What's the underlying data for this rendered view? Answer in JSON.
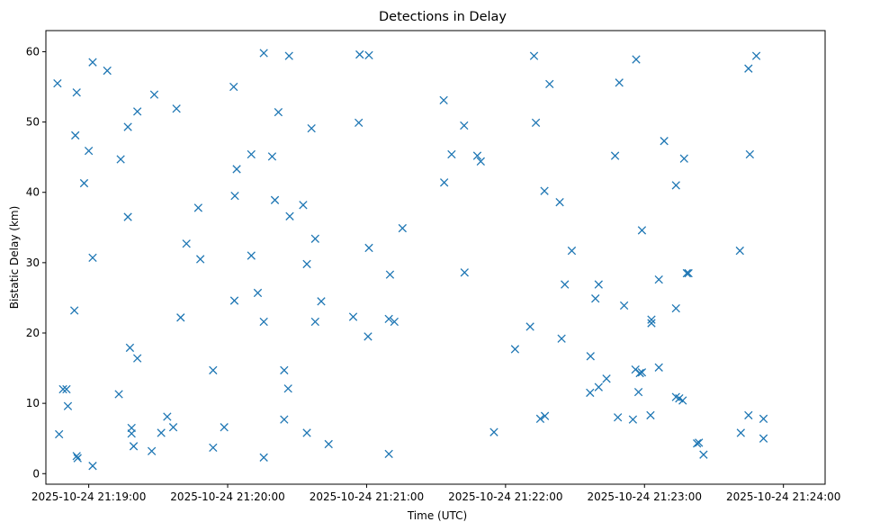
{
  "chart_data": {
    "type": "scatter",
    "title": "Detections in Delay",
    "xlabel": "Time (UTC)",
    "ylabel": "Bistatic Delay (km)",
    "marker": "x",
    "color": "#1f77b4",
    "x_unit": "seconds after 2025-10-24 21:19:00",
    "xlim": [
      -18.5,
      318
    ],
    "ylim": [
      -1.5,
      63
    ],
    "x_ticks": [
      {
        "value": 0,
        "label": "2025-10-24 21:19:00"
      },
      {
        "value": 60,
        "label": "2025-10-24 21:20:00"
      },
      {
        "value": 120,
        "label": "2025-10-24 21:21:00"
      },
      {
        "value": 180,
        "label": "2025-10-24 21:22:00"
      },
      {
        "value": 240,
        "label": "2025-10-24 21:23:00"
      },
      {
        "value": 300,
        "label": "2025-10-24 21:24:00"
      }
    ],
    "y_ticks": [
      {
        "value": 0,
        "label": "0"
      },
      {
        "value": 10,
        "label": "10"
      },
      {
        "value": 20,
        "label": "20"
      },
      {
        "value": 30,
        "label": "30"
      },
      {
        "value": 40,
        "label": "40"
      },
      {
        "value": 50,
        "label": "50"
      },
      {
        "value": 60,
        "label": "60"
      }
    ],
    "points": [
      {
        "x": -13.5,
        "y": 55.5
      },
      {
        "x": -12.8,
        "y": 5.6
      },
      {
        "x": -11.1,
        "y": 12.0
      },
      {
        "x": -9.6,
        "y": 12.0
      },
      {
        "x": -9.0,
        "y": 9.6
      },
      {
        "x": -6.2,
        "y": 23.2
      },
      {
        "x": -5.8,
        "y": 48.1
      },
      {
        "x": -5.2,
        "y": 54.2
      },
      {
        "x": -5.2,
        "y": 2.5
      },
      {
        "x": -4.8,
        "y": 2.2
      },
      {
        "x": -2.0,
        "y": 41.3
      },
      {
        "x": 0.0,
        "y": 45.9
      },
      {
        "x": 1.7,
        "y": 58.5
      },
      {
        "x": 1.7,
        "y": 30.7
      },
      {
        "x": 1.7,
        "y": 1.1
      },
      {
        "x": 8.0,
        "y": 57.3
      },
      {
        "x": 13.0,
        "y": 11.3
      },
      {
        "x": 13.8,
        "y": 44.7
      },
      {
        "x": 16.9,
        "y": 49.3
      },
      {
        "x": 16.9,
        "y": 36.5
      },
      {
        "x": 17.8,
        "y": 17.9
      },
      {
        "x": 18.5,
        "y": 6.5
      },
      {
        "x": 18.5,
        "y": 5.7
      },
      {
        "x": 19.4,
        "y": 3.9
      },
      {
        "x": 21.0,
        "y": 51.5
      },
      {
        "x": 21.0,
        "y": 16.4
      },
      {
        "x": 27.2,
        "y": 3.2
      },
      {
        "x": 28.3,
        "y": 53.9
      },
      {
        "x": 31.3,
        "y": 5.8
      },
      {
        "x": 33.9,
        "y": 8.1
      },
      {
        "x": 36.5,
        "y": 6.6
      },
      {
        "x": 37.9,
        "y": 51.9
      },
      {
        "x": 39.7,
        "y": 22.2
      },
      {
        "x": 42.2,
        "y": 32.7
      },
      {
        "x": 47.3,
        "y": 37.8
      },
      {
        "x": 48.2,
        "y": 30.5
      },
      {
        "x": 53.7,
        "y": 14.7
      },
      {
        "x": 53.7,
        "y": 3.7
      },
      {
        "x": 58.5,
        "y": 6.6
      },
      {
        "x": 62.6,
        "y": 55.0
      },
      {
        "x": 62.9,
        "y": 24.6
      },
      {
        "x": 63.1,
        "y": 39.5
      },
      {
        "x": 63.9,
        "y": 43.3
      },
      {
        "x": 70.2,
        "y": 45.4
      },
      {
        "x": 70.2,
        "y": 31.0
      },
      {
        "x": 73.0,
        "y": 25.7
      },
      {
        "x": 75.6,
        "y": 59.8
      },
      {
        "x": 75.6,
        "y": 21.6
      },
      {
        "x": 75.6,
        "y": 2.3
      },
      {
        "x": 79.2,
        "y": 45.1
      },
      {
        "x": 80.4,
        "y": 38.9
      },
      {
        "x": 81.9,
        "y": 51.4
      },
      {
        "x": 84.4,
        "y": 14.7
      },
      {
        "x": 84.4,
        "y": 7.7
      },
      {
        "x": 86.1,
        "y": 12.1
      },
      {
        "x": 86.5,
        "y": 59.4
      },
      {
        "x": 86.8,
        "y": 36.6
      },
      {
        "x": 92.6,
        "y": 38.2
      },
      {
        "x": 94.2,
        "y": 29.8
      },
      {
        "x": 94.2,
        "y": 5.8
      },
      {
        "x": 96.2,
        "y": 49.1
      },
      {
        "x": 97.8,
        "y": 33.4
      },
      {
        "x": 97.8,
        "y": 21.6
      },
      {
        "x": 100.4,
        "y": 24.5
      },
      {
        "x": 103.6,
        "y": 4.2
      },
      {
        "x": 114.2,
        "y": 22.3
      },
      {
        "x": 116.6,
        "y": 49.9
      },
      {
        "x": 117.0,
        "y": 59.6
      },
      {
        "x": 120.6,
        "y": 19.5
      },
      {
        "x": 121.0,
        "y": 32.1
      },
      {
        "x": 121.0,
        "y": 59.5
      },
      {
        "x": 129.6,
        "y": 22.0
      },
      {
        "x": 129.6,
        "y": 2.8
      },
      {
        "x": 130.1,
        "y": 28.3
      },
      {
        "x": 132.0,
        "y": 21.6
      },
      {
        "x": 135.5,
        "y": 34.9
      },
      {
        "x": 153.3,
        "y": 53.1
      },
      {
        "x": 153.5,
        "y": 41.4
      },
      {
        "x": 156.7,
        "y": 45.4
      },
      {
        "x": 162.1,
        "y": 49.5
      },
      {
        "x": 162.3,
        "y": 28.6
      },
      {
        "x": 167.8,
        "y": 45.2
      },
      {
        "x": 169.3,
        "y": 44.4
      },
      {
        "x": 175.0,
        "y": 5.9
      },
      {
        "x": 184.1,
        "y": 17.7
      },
      {
        "x": 190.6,
        "y": 20.9
      },
      {
        "x": 192.3,
        "y": 59.4
      },
      {
        "x": 193.1,
        "y": 49.9
      },
      {
        "x": 195.0,
        "y": 7.8
      },
      {
        "x": 196.8,
        "y": 40.2
      },
      {
        "x": 197.0,
        "y": 8.2
      },
      {
        "x": 199.0,
        "y": 55.4
      },
      {
        "x": 203.4,
        "y": 38.6
      },
      {
        "x": 204.2,
        "y": 19.2
      },
      {
        "x": 205.6,
        "y": 26.9
      },
      {
        "x": 208.6,
        "y": 31.7
      },
      {
        "x": 216.5,
        "y": 11.5
      },
      {
        "x": 216.7,
        "y": 16.7
      },
      {
        "x": 218.8,
        "y": 24.9
      },
      {
        "x": 220.2,
        "y": 26.9
      },
      {
        "x": 220.2,
        "y": 12.3
      },
      {
        "x": 223.6,
        "y": 13.5
      },
      {
        "x": 227.3,
        "y": 45.2
      },
      {
        "x": 228.5,
        "y": 8.0
      },
      {
        "x": 229.1,
        "y": 55.6
      },
      {
        "x": 231.2,
        "y": 23.9
      },
      {
        "x": 235.0,
        "y": 7.7
      },
      {
        "x": 236.1,
        "y": 14.8
      },
      {
        "x": 236.4,
        "y": 58.9
      },
      {
        "x": 237.4,
        "y": 11.6
      },
      {
        "x": 238.0,
        "y": 14.3
      },
      {
        "x": 238.9,
        "y": 34.6
      },
      {
        "x": 238.9,
        "y": 14.4
      },
      {
        "x": 242.6,
        "y": 8.3
      },
      {
        "x": 243.0,
        "y": 21.4
      },
      {
        "x": 243.0,
        "y": 21.9
      },
      {
        "x": 246.2,
        "y": 27.6
      },
      {
        "x": 246.2,
        "y": 15.1
      },
      {
        "x": 248.5,
        "y": 47.3
      },
      {
        "x": 253.6,
        "y": 41.0
      },
      {
        "x": 253.6,
        "y": 23.5
      },
      {
        "x": 253.6,
        "y": 10.9
      },
      {
        "x": 255.0,
        "y": 10.7
      },
      {
        "x": 256.5,
        "y": 10.4
      },
      {
        "x": 257.1,
        "y": 44.8
      },
      {
        "x": 258.3,
        "y": 28.5
      },
      {
        "x": 259.0,
        "y": 28.5
      },
      {
        "x": 262.7,
        "y": 4.3
      },
      {
        "x": 263.5,
        "y": 4.4
      },
      {
        "x": 265.5,
        "y": 2.7
      },
      {
        "x": 281.2,
        "y": 31.7
      },
      {
        "x": 281.6,
        "y": 5.8
      },
      {
        "x": 284.9,
        "y": 57.6
      },
      {
        "x": 284.9,
        "y": 8.3
      },
      {
        "x": 285.5,
        "y": 45.4
      },
      {
        "x": 288.3,
        "y": 59.4
      },
      {
        "x": 291.4,
        "y": 7.8
      },
      {
        "x": 291.4,
        "y": 5.0
      }
    ]
  }
}
